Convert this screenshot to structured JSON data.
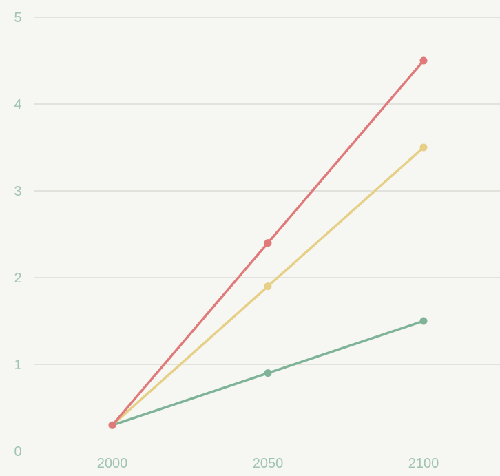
{
  "chart_data": {
    "type": "line",
    "x": [
      2000,
      2050,
      2100
    ],
    "x_tick_labels": [
      "2000",
      "2050",
      "2100"
    ],
    "y_tick_labels": [
      "0",
      "1",
      "2",
      "3",
      "4",
      "5"
    ],
    "ylim": [
      0,
      5
    ],
    "grid": true,
    "legend": "none",
    "series": [
      {
        "color": "#e07a7a",
        "values": [
          0.3,
          2.4,
          4.5
        ]
      },
      {
        "color": "#e6cf86",
        "values": [
          0.3,
          1.9,
          3.5
        ]
      },
      {
        "color": "#7fb398",
        "values": [
          0.3,
          0.9,
          1.5
        ]
      }
    ]
  },
  "colors": {
    "axis_label": "#9fc4b0",
    "grid": "#dcdcd6",
    "background": "#f6f6f2"
  }
}
